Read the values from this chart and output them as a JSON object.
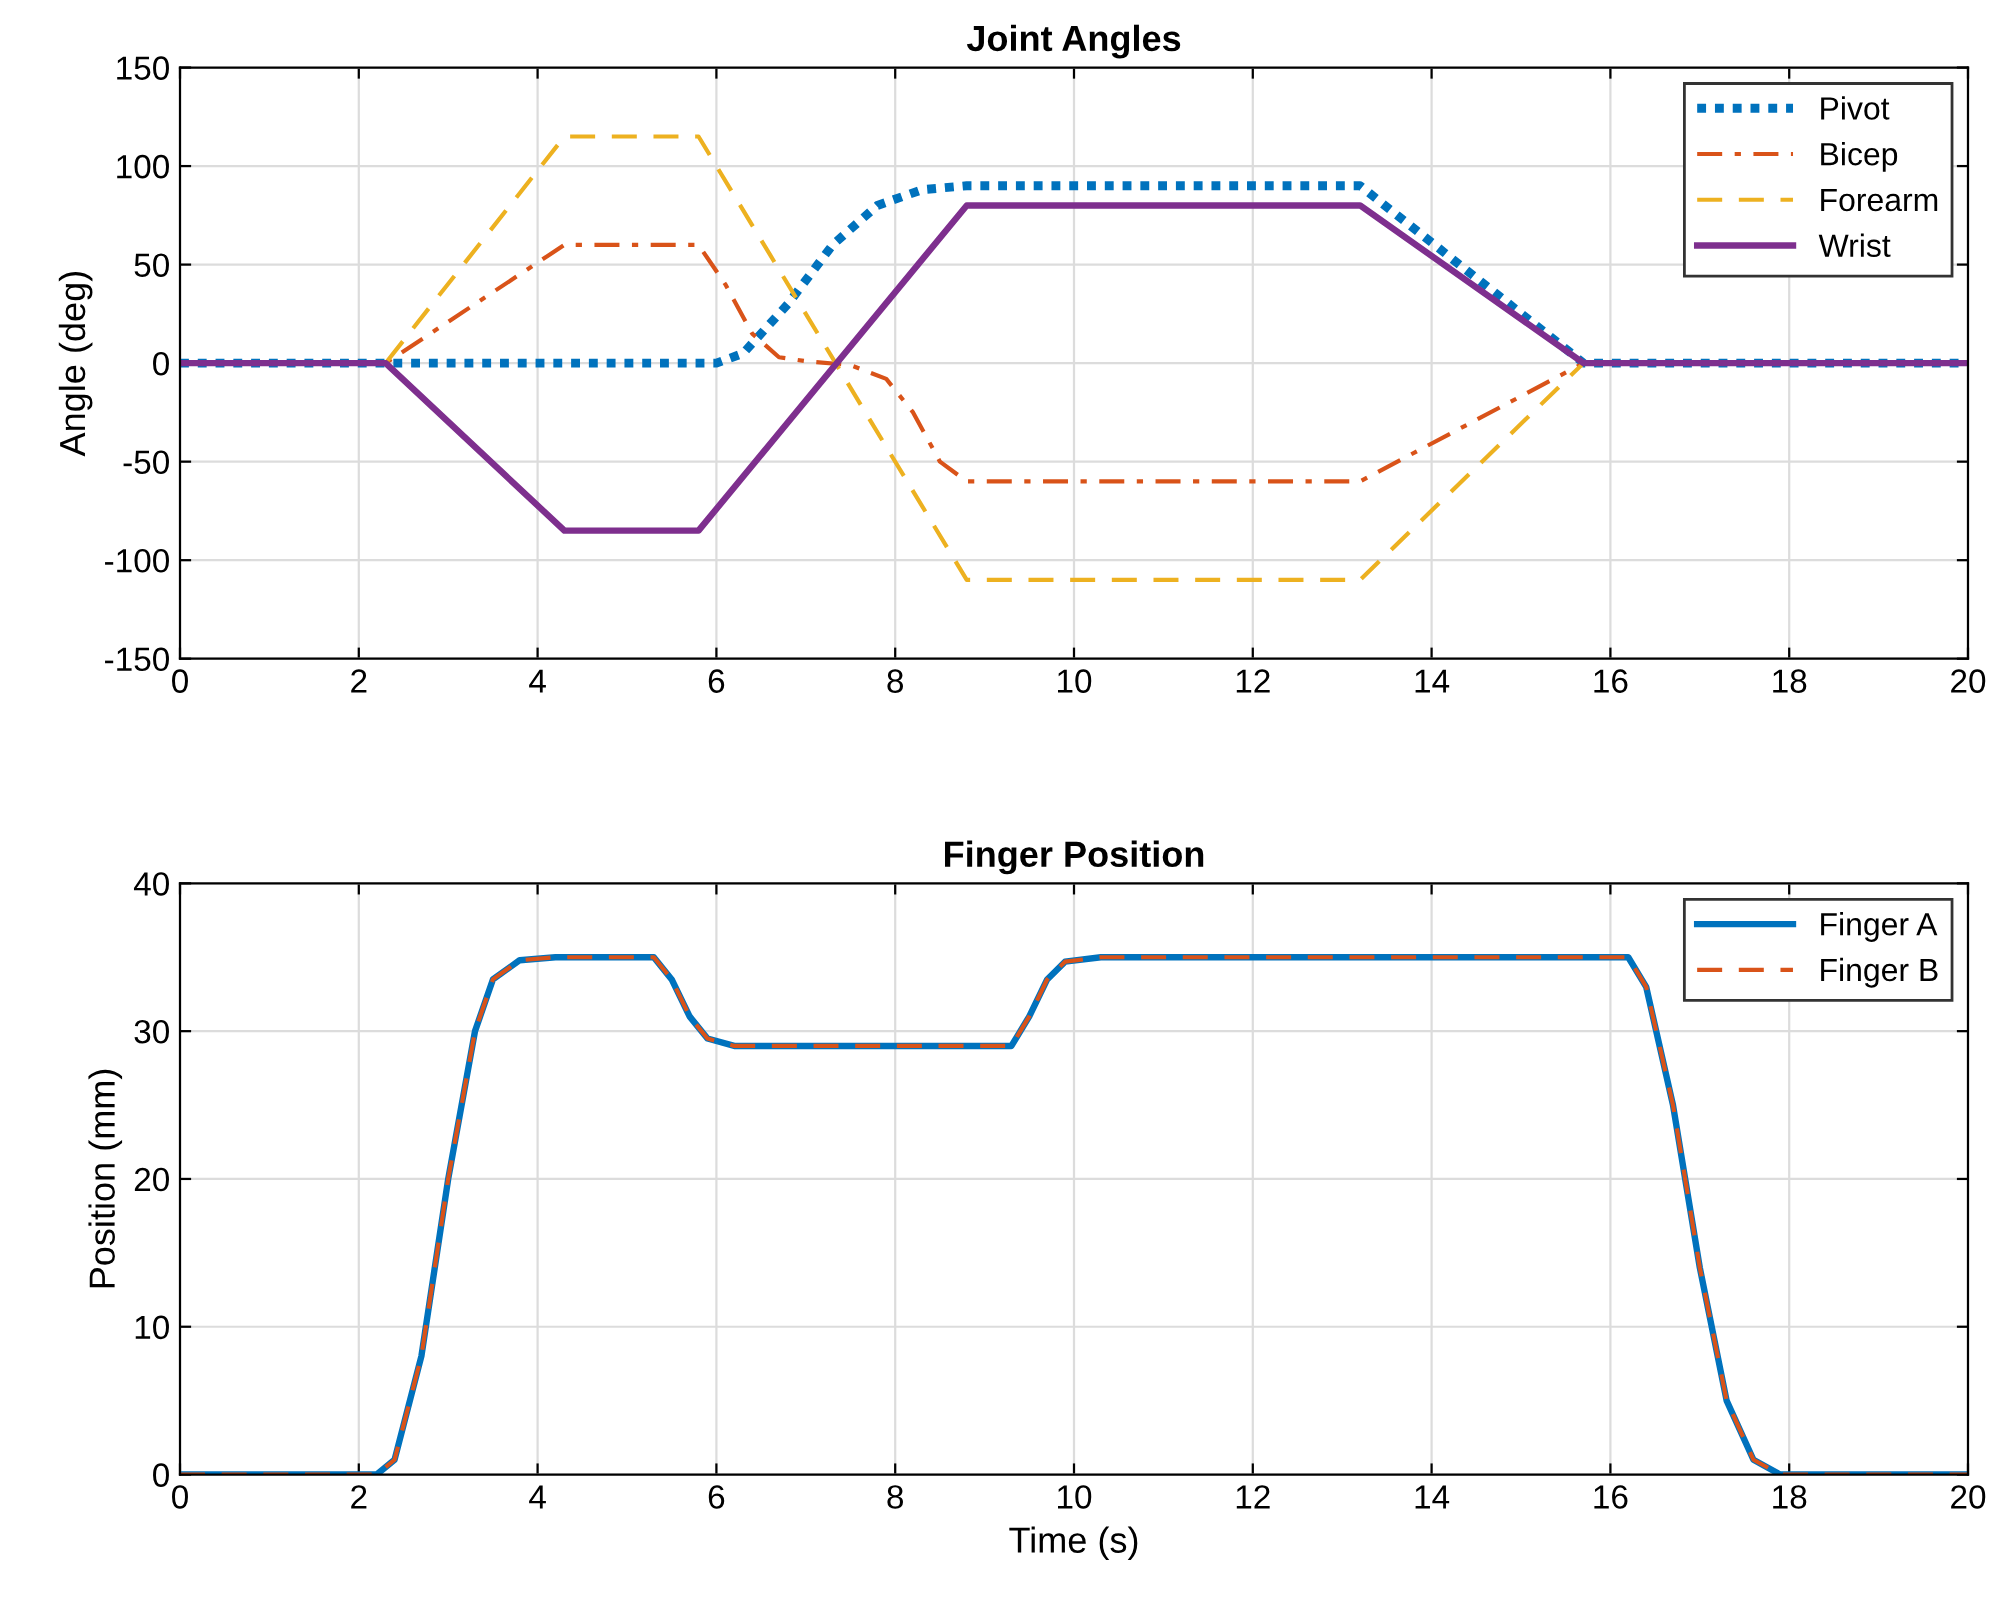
{
  "chart_data": [
    {
      "type": "line",
      "title": "Joint Angles",
      "ylabel": "Angle (deg)",
      "xlim": [
        0,
        20
      ],
      "xticks": [
        0,
        2,
        4,
        6,
        8,
        10,
        12,
        14,
        16,
        18,
        20
      ],
      "ylim": [
        -150,
        150
      ],
      "yticks": [
        -150,
        -100,
        -50,
        0,
        50,
        100,
        150
      ],
      "grid": true,
      "legend": "top right",
      "series": [
        {
          "name": "Pivot",
          "color": "#0072bd",
          "line_style": "dotted",
          "x": [
            0,
            6.0,
            6.3,
            6.8,
            7.3,
            7.8,
            8.3,
            8.8,
            13.2,
            15.7,
            20
          ],
          "values": [
            0,
            0,
            5,
            30,
            60,
            80,
            88,
            90,
            90,
            0,
            0
          ]
        },
        {
          "name": "Bicep",
          "color": "#d95319",
          "line_style": "dashdot",
          "x": [
            0,
            2.3,
            4.3,
            5.8,
            6.1,
            6.4,
            6.7,
            7.0,
            7.5,
            7.9,
            8.2,
            8.5,
            8.8,
            13.2,
            15.7,
            20
          ],
          "values": [
            0,
            0,
            60,
            60,
            40,
            15,
            3,
            1,
            -1,
            -8,
            -25,
            -50,
            -60,
            -60,
            0,
            0
          ]
        },
        {
          "name": "Forearm",
          "color": "#edb120",
          "line_style": "dashed",
          "x": [
            0,
            2.3,
            4.3,
            5.8,
            8.8,
            13.2,
            15.7,
            20
          ],
          "values": [
            0,
            0,
            115,
            115,
            -110,
            -110,
            0,
            0
          ]
        },
        {
          "name": "Wrist",
          "color": "#7e2f8e",
          "line_style": "solid",
          "x": [
            0,
            2.3,
            4.3,
            5.8,
            8.8,
            13.2,
            15.7,
            20
          ],
          "values": [
            0,
            0,
            -85,
            -85,
            80,
            80,
            0,
            0
          ]
        }
      ]
    },
    {
      "type": "line",
      "title": "Finger Position",
      "xlabel": "Time (s)",
      "ylabel": "Position (mm)",
      "xlim": [
        0,
        20
      ],
      "xticks": [
        0,
        2,
        4,
        6,
        8,
        10,
        12,
        14,
        16,
        18,
        20
      ],
      "ylim": [
        0,
        40
      ],
      "yticks": [
        0,
        10,
        20,
        30,
        40
      ],
      "grid": true,
      "legend": "top right",
      "series": [
        {
          "name": "Finger A",
          "color": "#0072bd",
          "line_style": "solid",
          "x": [
            0,
            2.2,
            2.4,
            2.7,
            3.0,
            3.3,
            3.5,
            3.8,
            4.2,
            5.3,
            5.5,
            5.7,
            5.9,
            6.2,
            9.3,
            9.5,
            9.7,
            9.9,
            10.3,
            16.2,
            16.4,
            16.7,
            17.0,
            17.3,
            17.6,
            17.9,
            20
          ],
          "values": [
            0,
            0,
            1,
            8,
            20,
            30,
            33.5,
            34.8,
            35,
            35,
            33.5,
            31,
            29.5,
            29,
            29,
            31,
            33.5,
            34.7,
            35,
            35,
            33,
            25,
            14,
            5,
            1,
            0,
            0
          ]
        },
        {
          "name": "Finger B",
          "color": "#d95319",
          "line_style": "dashed",
          "x": [
            0,
            2.2,
            2.4,
            2.7,
            3.0,
            3.3,
            3.5,
            3.8,
            4.2,
            5.3,
            5.5,
            5.7,
            5.9,
            6.2,
            9.3,
            9.5,
            9.7,
            9.9,
            10.3,
            16.2,
            16.4,
            16.7,
            17.0,
            17.3,
            17.6,
            17.9,
            20
          ],
          "values": [
            0,
            0,
            1,
            8,
            20,
            30,
            33.5,
            34.8,
            35,
            35,
            33.5,
            31,
            29.5,
            29,
            29,
            31,
            33.5,
            34.7,
            35,
            35,
            33,
            25,
            14,
            5,
            1,
            0,
            0
          ]
        }
      ]
    }
  ]
}
